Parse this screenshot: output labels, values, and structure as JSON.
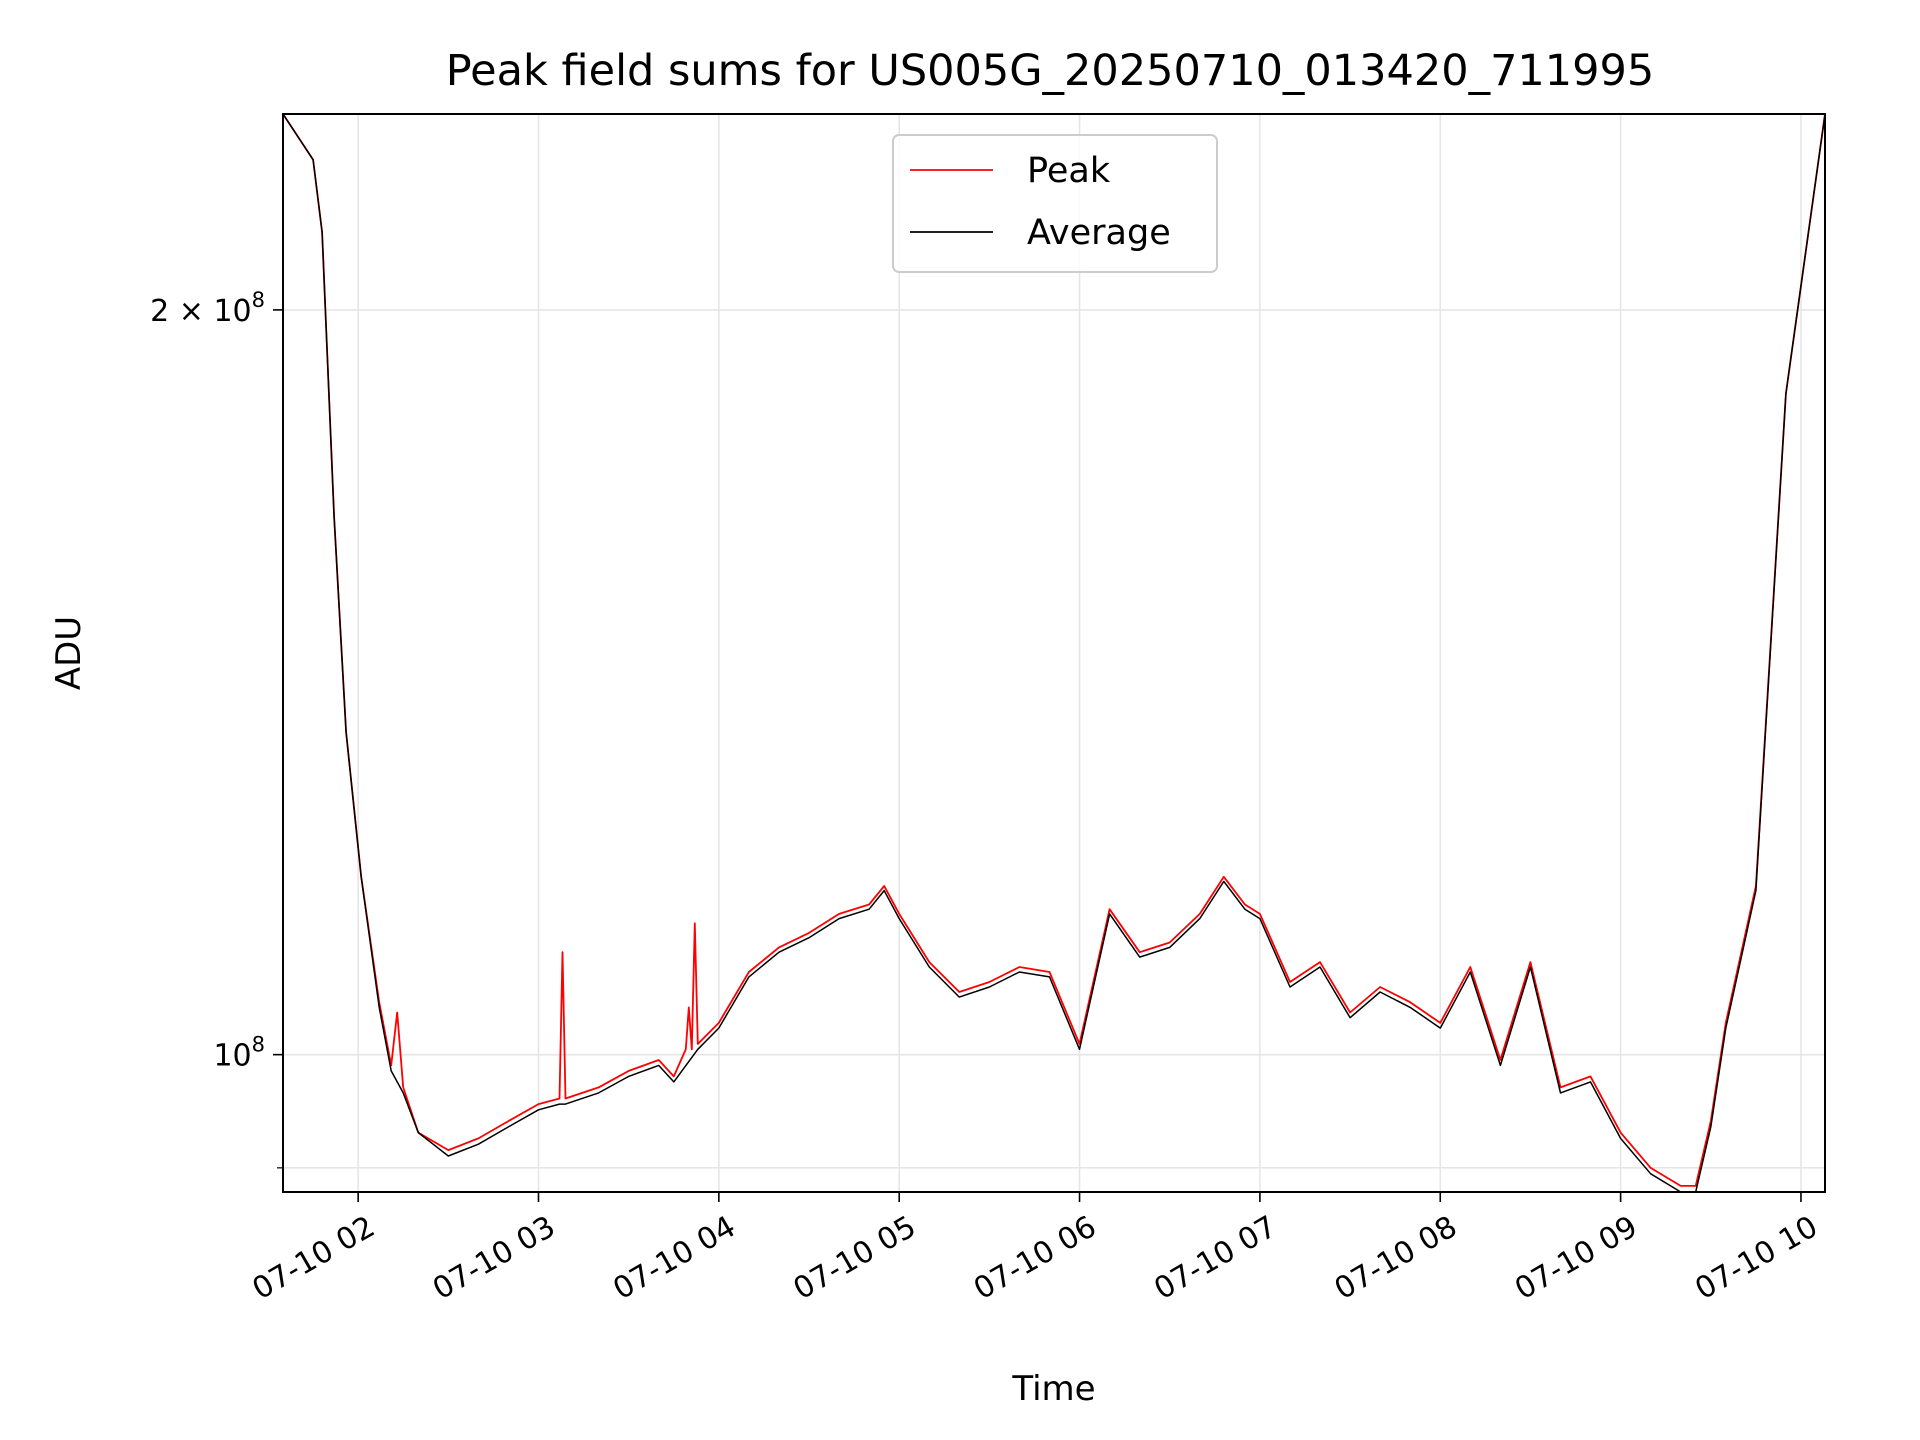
{
  "chart_data": {
    "type": "line",
    "title": "Peak field sums for US005G_20250710_013420_711995",
    "xlabel": "Time",
    "ylabel": "ADU",
    "y_scale": "log",
    "ylim": [
      88000000,
      240000000
    ],
    "xlim": [
      "07-10 01:35",
      "07-10 10:08"
    ],
    "grid": true,
    "legend_position": "top-center",
    "x_ticks": [
      "07-10 02",
      "07-10 03",
      "07-10 04",
      "07-10 05",
      "07-10 06",
      "07-10 07",
      "07-10 08",
      "07-10 09",
      "07-10 10"
    ],
    "y_ticks": [
      {
        "value": 100000000,
        "mantissa": "",
        "base": "10",
        "exp": "8"
      },
      {
        "value": 200000000,
        "mantissa": "2 × ",
        "base": "10",
        "exp": "8"
      }
    ],
    "series": [
      {
        "name": "Peak",
        "color": "#ff0000",
        "points": [
          [
            "07-10 01:35",
            240000000
          ],
          [
            "07-10 01:45",
            230000000
          ],
          [
            "07-10 01:48",
            215000000
          ],
          [
            "07-10 01:52",
            165000000
          ],
          [
            "07-10 01:56",
            135000000
          ],
          [
            "07-10 02:01",
            118000000
          ],
          [
            "07-10 02:07",
            105000000
          ],
          [
            "07-10 02:11",
            99000000
          ],
          [
            "07-10 02:13",
            104000000
          ],
          [
            "07-10 02:15",
            97000000
          ],
          [
            "07-10 02:20",
            93000000
          ],
          [
            "07-10 02:30",
            91500000
          ],
          [
            "07-10 02:40",
            92500000
          ],
          [
            "07-10 02:50",
            94000000
          ],
          [
            "07-10 03:00",
            95500000
          ],
          [
            "07-10 03:07",
            96000000
          ],
          [
            "07-10 03:08",
            110000000
          ],
          [
            "07-10 03:09",
            96000000
          ],
          [
            "07-10 03:20",
            97000000
          ],
          [
            "07-10 03:30",
            98500000
          ],
          [
            "07-10 03:40",
            99500000
          ],
          [
            "07-10 03:45",
            98000000
          ],
          [
            "07-10 03:49",
            100500000
          ],
          [
            "07-10 03:50",
            104500000
          ],
          [
            "07-10 03:51",
            100500000
          ],
          [
            "07-10 03:52",
            113000000
          ],
          [
            "07-10 03:53",
            101000000
          ],
          [
            "07-10 04:00",
            103000000
          ],
          [
            "07-10 04:10",
            108000000
          ],
          [
            "07-10 04:20",
            110500000
          ],
          [
            "07-10 04:30",
            112000000
          ],
          [
            "07-10 04:40",
            114000000
          ],
          [
            "07-10 04:50",
            115000000
          ],
          [
            "07-10 04:55",
            117000000
          ],
          [
            "07-10 05:00",
            114000000
          ],
          [
            "07-10 05:10",
            109000000
          ],
          [
            "07-10 05:20",
            106000000
          ],
          [
            "07-10 05:30",
            107000000
          ],
          [
            "07-10 05:40",
            108500000
          ],
          [
            "07-10 05:50",
            108000000
          ],
          [
            "07-10 06:00",
            101000000
          ],
          [
            "07-10 06:10",
            114500000
          ],
          [
            "07-10 06:20",
            110000000
          ],
          [
            "07-10 06:30",
            111000000
          ],
          [
            "07-10 06:40",
            114000000
          ],
          [
            "07-10 06:48",
            118000000
          ],
          [
            "07-10 06:55",
            115000000
          ],
          [
            "07-10 07:00",
            114000000
          ],
          [
            "07-10 07:10",
            107000000
          ],
          [
            "07-10 07:20",
            109000000
          ],
          [
            "07-10 07:30",
            104000000
          ],
          [
            "07-10 07:40",
            106500000
          ],
          [
            "07-10 07:50",
            105000000
          ],
          [
            "07-10 08:00",
            103000000
          ],
          [
            "07-10 08:10",
            108500000
          ],
          [
            "07-10 08:20",
            99500000
          ],
          [
            "07-10 08:30",
            109000000
          ],
          [
            "07-10 08:40",
            97000000
          ],
          [
            "07-10 08:50",
            98000000
          ],
          [
            "07-10 09:00",
            93000000
          ],
          [
            "07-10 09:10",
            90000000
          ],
          [
            "07-10 09:20",
            88500000
          ],
          [
            "07-10 09:25",
            88500000
          ],
          [
            "07-10 09:30",
            94000000
          ],
          [
            "07-10 09:35",
            103000000
          ],
          [
            "07-10 09:45",
            117000000
          ],
          [
            "07-10 09:55",
            185000000
          ],
          [
            "07-10 10:08",
            240000000
          ]
        ]
      },
      {
        "name": "Average",
        "color": "#000000",
        "points": [
          [
            "07-10 01:35",
            240000000
          ],
          [
            "07-10 01:45",
            230000000
          ],
          [
            "07-10 01:48",
            215000000
          ],
          [
            "07-10 01:52",
            165000000
          ],
          [
            "07-10 01:56",
            135000000
          ],
          [
            "07-10 02:01",
            118000000
          ],
          [
            "07-10 02:07",
            104500000
          ],
          [
            "07-10 02:11",
            98500000
          ],
          [
            "07-10 02:15",
            96500000
          ],
          [
            "07-10 02:20",
            93000000
          ],
          [
            "07-10 02:30",
            91000000
          ],
          [
            "07-10 02:40",
            92000000
          ],
          [
            "07-10 02:50",
            93500000
          ],
          [
            "07-10 03:00",
            95000000
          ],
          [
            "07-10 03:07",
            95500000
          ],
          [
            "07-10 03:09",
            95500000
          ],
          [
            "07-10 03:20",
            96500000
          ],
          [
            "07-10 03:30",
            98000000
          ],
          [
            "07-10 03:40",
            99000000
          ],
          [
            "07-10 03:45",
            97500000
          ],
          [
            "07-10 03:53",
            100500000
          ],
          [
            "07-10 04:00",
            102500000
          ],
          [
            "07-10 04:10",
            107500000
          ],
          [
            "07-10 04:20",
            110000000
          ],
          [
            "07-10 04:30",
            111500000
          ],
          [
            "07-10 04:40",
            113500000
          ],
          [
            "07-10 04:50",
            114500000
          ],
          [
            "07-10 04:55",
            116500000
          ],
          [
            "07-10 05:00",
            113500000
          ],
          [
            "07-10 05:10",
            108500000
          ],
          [
            "07-10 05:20",
            105500000
          ],
          [
            "07-10 05:30",
            106500000
          ],
          [
            "07-10 05:40",
            108000000
          ],
          [
            "07-10 05:50",
            107500000
          ],
          [
            "07-10 06:00",
            100500000
          ],
          [
            "07-10 06:10",
            114000000
          ],
          [
            "07-10 06:20",
            109500000
          ],
          [
            "07-10 06:30",
            110500000
          ],
          [
            "07-10 06:40",
            113500000
          ],
          [
            "07-10 06:48",
            117500000
          ],
          [
            "07-10 06:55",
            114500000
          ],
          [
            "07-10 07:00",
            113500000
          ],
          [
            "07-10 07:10",
            106500000
          ],
          [
            "07-10 07:20",
            108500000
          ],
          [
            "07-10 07:30",
            103500000
          ],
          [
            "07-10 07:40",
            106000000
          ],
          [
            "07-10 07:50",
            104500000
          ],
          [
            "07-10 08:00",
            102500000
          ],
          [
            "07-10 08:10",
            108000000
          ],
          [
            "07-10 08:20",
            99000000
          ],
          [
            "07-10 08:30",
            108500000
          ],
          [
            "07-10 08:40",
            96500000
          ],
          [
            "07-10 08:50",
            97500000
          ],
          [
            "07-10 09:00",
            92500000
          ],
          [
            "07-10 09:10",
            89500000
          ],
          [
            "07-10 09:20",
            88000000
          ],
          [
            "07-10 09:25",
            88000000
          ],
          [
            "07-10 09:30",
            93500000
          ],
          [
            "07-10 09:35",
            102500000
          ],
          [
            "07-10 09:45",
            116500000
          ],
          [
            "07-10 09:55",
            185000000
          ],
          [
            "07-10 10:08",
            240000000
          ]
        ]
      }
    ]
  }
}
